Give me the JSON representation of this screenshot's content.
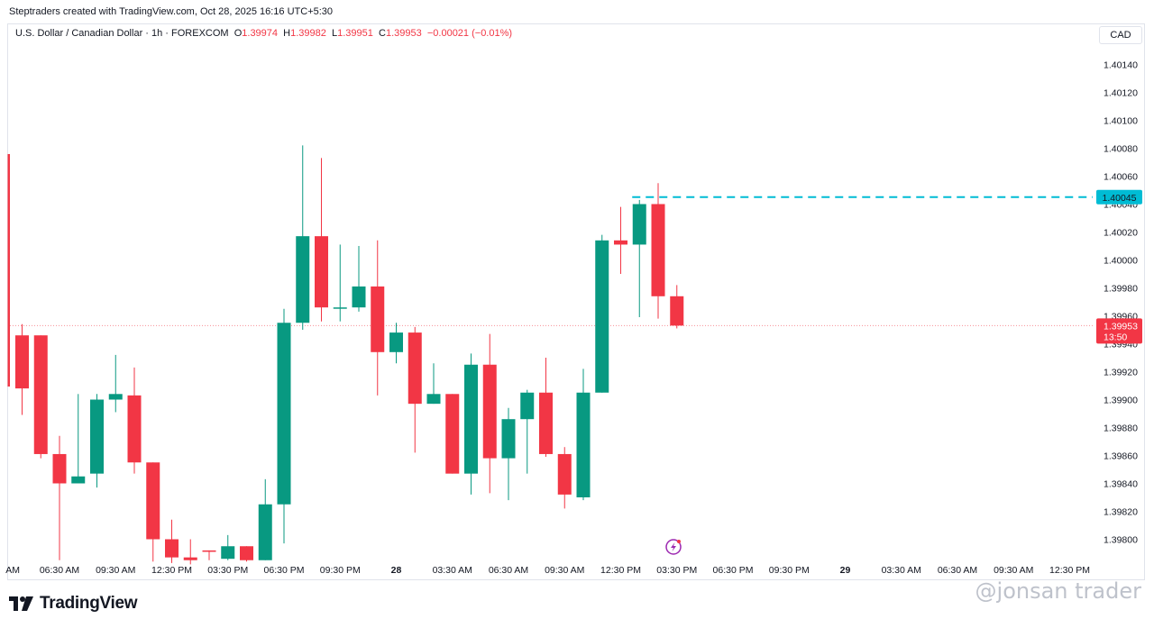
{
  "header": {
    "attribution": "Steptraders created with TradingView.com, Oct 28, 2025 16:16 UTC+5:30"
  },
  "legend": {
    "symbol": "U.S. Dollar / Canadian Dollar · 1h · FOREXCOM",
    "open_label": "O",
    "open": "1.39974",
    "high_label": "H",
    "high": "1.39982",
    "low_label": "L",
    "low": "1.39951",
    "close_label": "C",
    "close": "1.39953",
    "change": "−0.00021 (−0.01%)"
  },
  "currency_button": "CAD",
  "price_labels": {
    "last_price": "1.39953",
    "countdown": "13:50",
    "level_line": "1.40045"
  },
  "logo": {
    "text": "TradingView"
  },
  "watermark": "@jonsan trader",
  "colors": {
    "up": "#089981",
    "down": "#f23645",
    "level_line": "#00bcd4",
    "grid_text": "#131722"
  },
  "chart_data": {
    "type": "candlestick",
    "title": "U.S. Dollar / Canadian Dollar · 1h · FOREXCOM",
    "ylim": [
      1.39782,
      1.40162
    ],
    "y_ticks": [
      "1.40140",
      "1.40120",
      "1.40100",
      "1.40080",
      "1.40060",
      "1.40040",
      "1.40020",
      "1.40000",
      "1.39980",
      "1.39960",
      "1.39940",
      "1.39920",
      "1.39900",
      "1.39880",
      "1.39860",
      "1.39840",
      "1.39820",
      "1.39800"
    ],
    "x_ticks": [
      {
        "i": -0.5,
        "label": "AM"
      },
      {
        "i": 2,
        "label": "06:30 AM"
      },
      {
        "i": 5,
        "label": "09:30 AM"
      },
      {
        "i": 8,
        "label": "12:30 PM"
      },
      {
        "i": 11,
        "label": "03:30 PM"
      },
      {
        "i": 14,
        "label": "06:30 PM"
      },
      {
        "i": 17,
        "label": "09:30 PM"
      },
      {
        "i": 20,
        "label": "28"
      },
      {
        "i": 23,
        "label": "03:30 AM"
      },
      {
        "i": 26,
        "label": "06:30 AM"
      },
      {
        "i": 29,
        "label": "09:30 AM"
      },
      {
        "i": 32,
        "label": "12:30 PM"
      },
      {
        "i": 35,
        "label": "03:30 PM"
      },
      {
        "i": 38,
        "label": "06:30 PM"
      },
      {
        "i": 41,
        "label": "09:30 PM"
      },
      {
        "i": 44,
        "label": "29"
      },
      {
        "i": 47,
        "label": "03:30 AM"
      },
      {
        "i": 50,
        "label": "06:30 AM"
      },
      {
        "i": 53,
        "label": "09:30 AM"
      },
      {
        "i": 56,
        "label": "12:30 PM"
      }
    ],
    "candles": [
      {
        "o": 1.39946,
        "h": 1.39954,
        "l": 1.39889,
        "c": 1.39908
      },
      {
        "o": 1.39946,
        "h": 1.39946,
        "l": 1.39858,
        "c": 1.39861
      },
      {
        "o": 1.39861,
        "h": 1.39874,
        "l": 1.39785,
        "c": 1.3984
      },
      {
        "o": 1.3984,
        "h": 1.39904,
        "l": 1.3984,
        "c": 1.39845
      },
      {
        "o": 1.39847,
        "h": 1.39904,
        "l": 1.39837,
        "c": 1.399
      },
      {
        "o": 1.399,
        "h": 1.39932,
        "l": 1.39891,
        "c": 1.39904
      },
      {
        "o": 1.39903,
        "h": 1.39923,
        "l": 1.39847,
        "c": 1.39855
      },
      {
        "o": 1.39855,
        "h": 1.39855,
        "l": 1.39784,
        "c": 1.398
      },
      {
        "o": 1.398,
        "h": 1.39814,
        "l": 1.39783,
        "c": 1.39787
      },
      {
        "o": 1.39787,
        "h": 1.398,
        "l": 1.39782,
        "c": 1.39785
      },
      {
        "o": 1.39792,
        "h": 1.39792,
        "l": 1.39785,
        "c": 1.39791
      },
      {
        "o": 1.39786,
        "h": 1.39803,
        "l": 1.39785,
        "c": 1.39795
      },
      {
        "o": 1.39795,
        "h": 1.39795,
        "l": 1.39784,
        "c": 1.39785
      },
      {
        "o": 1.39785,
        "h": 1.39843,
        "l": 1.39785,
        "c": 1.39825
      },
      {
        "o": 1.39825,
        "h": 1.39965,
        "l": 1.39797,
        "c": 1.39955
      },
      {
        "o": 1.39955,
        "h": 1.40082,
        "l": 1.3995,
        "c": 1.40017
      },
      {
        "o": 1.40017,
        "h": 1.40073,
        "l": 1.39956,
        "c": 1.39966
      },
      {
        "o": 1.39966,
        "h": 1.40011,
        "l": 1.39956,
        "c": 1.39966
      },
      {
        "o": 1.39966,
        "h": 1.4001,
        "l": 1.39963,
        "c": 1.39981
      },
      {
        "o": 1.39981,
        "h": 1.40014,
        "l": 1.39903,
        "c": 1.39934
      },
      {
        "o": 1.39934,
        "h": 1.39955,
        "l": 1.39926,
        "c": 1.39948
      },
      {
        "o": 1.39948,
        "h": 1.39952,
        "l": 1.39862,
        "c": 1.39897
      },
      {
        "o": 1.39897,
        "h": 1.39926,
        "l": 1.39897,
        "c": 1.39904
      },
      {
        "o": 1.39904,
        "h": 1.39904,
        "l": 1.39847,
        "c": 1.39847
      },
      {
        "o": 1.39847,
        "h": 1.39933,
        "l": 1.39832,
        "c": 1.39925
      },
      {
        "o": 1.39925,
        "h": 1.39947,
        "l": 1.39833,
        "c": 1.39858
      },
      {
        "o": 1.39858,
        "h": 1.39894,
        "l": 1.39828,
        "c": 1.39886
      },
      {
        "o": 1.39886,
        "h": 1.39907,
        "l": 1.39847,
        "c": 1.39905
      },
      {
        "o": 1.39905,
        "h": 1.3993,
        "l": 1.39859,
        "c": 1.39861
      },
      {
        "o": 1.39861,
        "h": 1.39866,
        "l": 1.39822,
        "c": 1.39832
      },
      {
        "o": 1.3983,
        "h": 1.39922,
        "l": 1.39828,
        "c": 1.39905
      },
      {
        "o": 1.39905,
        "h": 1.40018,
        "l": 1.39905,
        "c": 1.40014
      },
      {
        "o": 1.40014,
        "h": 1.40038,
        "l": 1.3999,
        "c": 1.40011
      },
      {
        "o": 1.40011,
        "h": 1.40043,
        "l": 1.39959,
        "c": 1.4004
      },
      {
        "o": 1.4004,
        "h": 1.40055,
        "l": 1.39958,
        "c": 1.39974
      },
      {
        "o": 1.39974,
        "h": 1.39982,
        "l": 1.39951,
        "c": 1.39953
      }
    ]
  }
}
